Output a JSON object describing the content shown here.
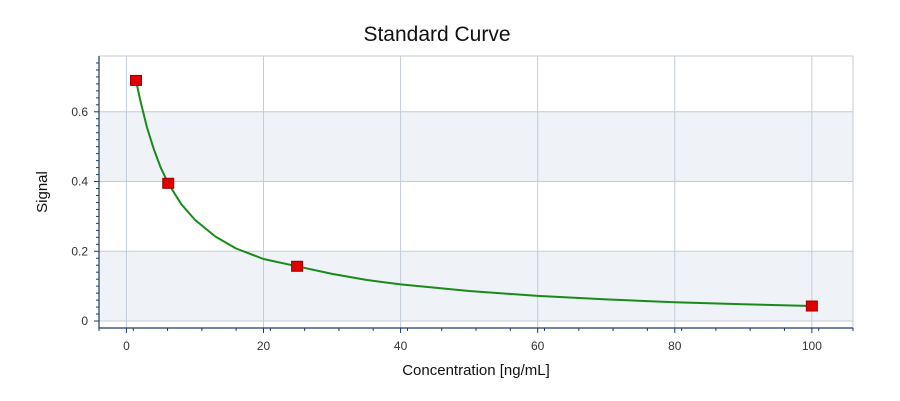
{
  "chart_data": {
    "type": "scatter",
    "title": "Standard Curve",
    "xlabel": "Concentration [ng/mL]",
    "ylabel": "Signal",
    "xlim": [
      -4,
      106
    ],
    "ylim": [
      -0.02,
      0.76
    ],
    "xticks": [
      0,
      20,
      40,
      60,
      80,
      100
    ],
    "yticks": [
      0,
      0.2,
      0.4,
      0.6
    ],
    "xtick_labels": [
      "0",
      "20",
      "40",
      "60",
      "80",
      "100"
    ],
    "ytick_labels": [
      "0",
      "0.2",
      "0.4",
      "0.6"
    ],
    "grid": true,
    "series": [
      {
        "kind": "points",
        "color": "#e00000",
        "x": [
          1.4,
          6.1,
          24.9,
          100
        ],
        "y": [
          0.69,
          0.395,
          0.157,
          0.043
        ]
      },
      {
        "kind": "fit-curve",
        "color": "#1a8a1a",
        "x": [
          1.4,
          2,
          3,
          4,
          5,
          6.1,
          8,
          10,
          13,
          16,
          20,
          24.9,
          30,
          35,
          40,
          50,
          60,
          70,
          80,
          90,
          100
        ],
        "y": [
          0.69,
          0.635,
          0.555,
          0.493,
          0.44,
          0.395,
          0.335,
          0.29,
          0.242,
          0.208,
          0.178,
          0.157,
          0.135,
          0.118,
          0.105,
          0.086,
          0.072,
          0.062,
          0.054,
          0.048,
          0.043
        ]
      }
    ],
    "colors": {
      "band": "#eff2f7",
      "grid": "#c4ccd9",
      "axis": "#1e3a66",
      "border": "#c4ccd9"
    }
  }
}
